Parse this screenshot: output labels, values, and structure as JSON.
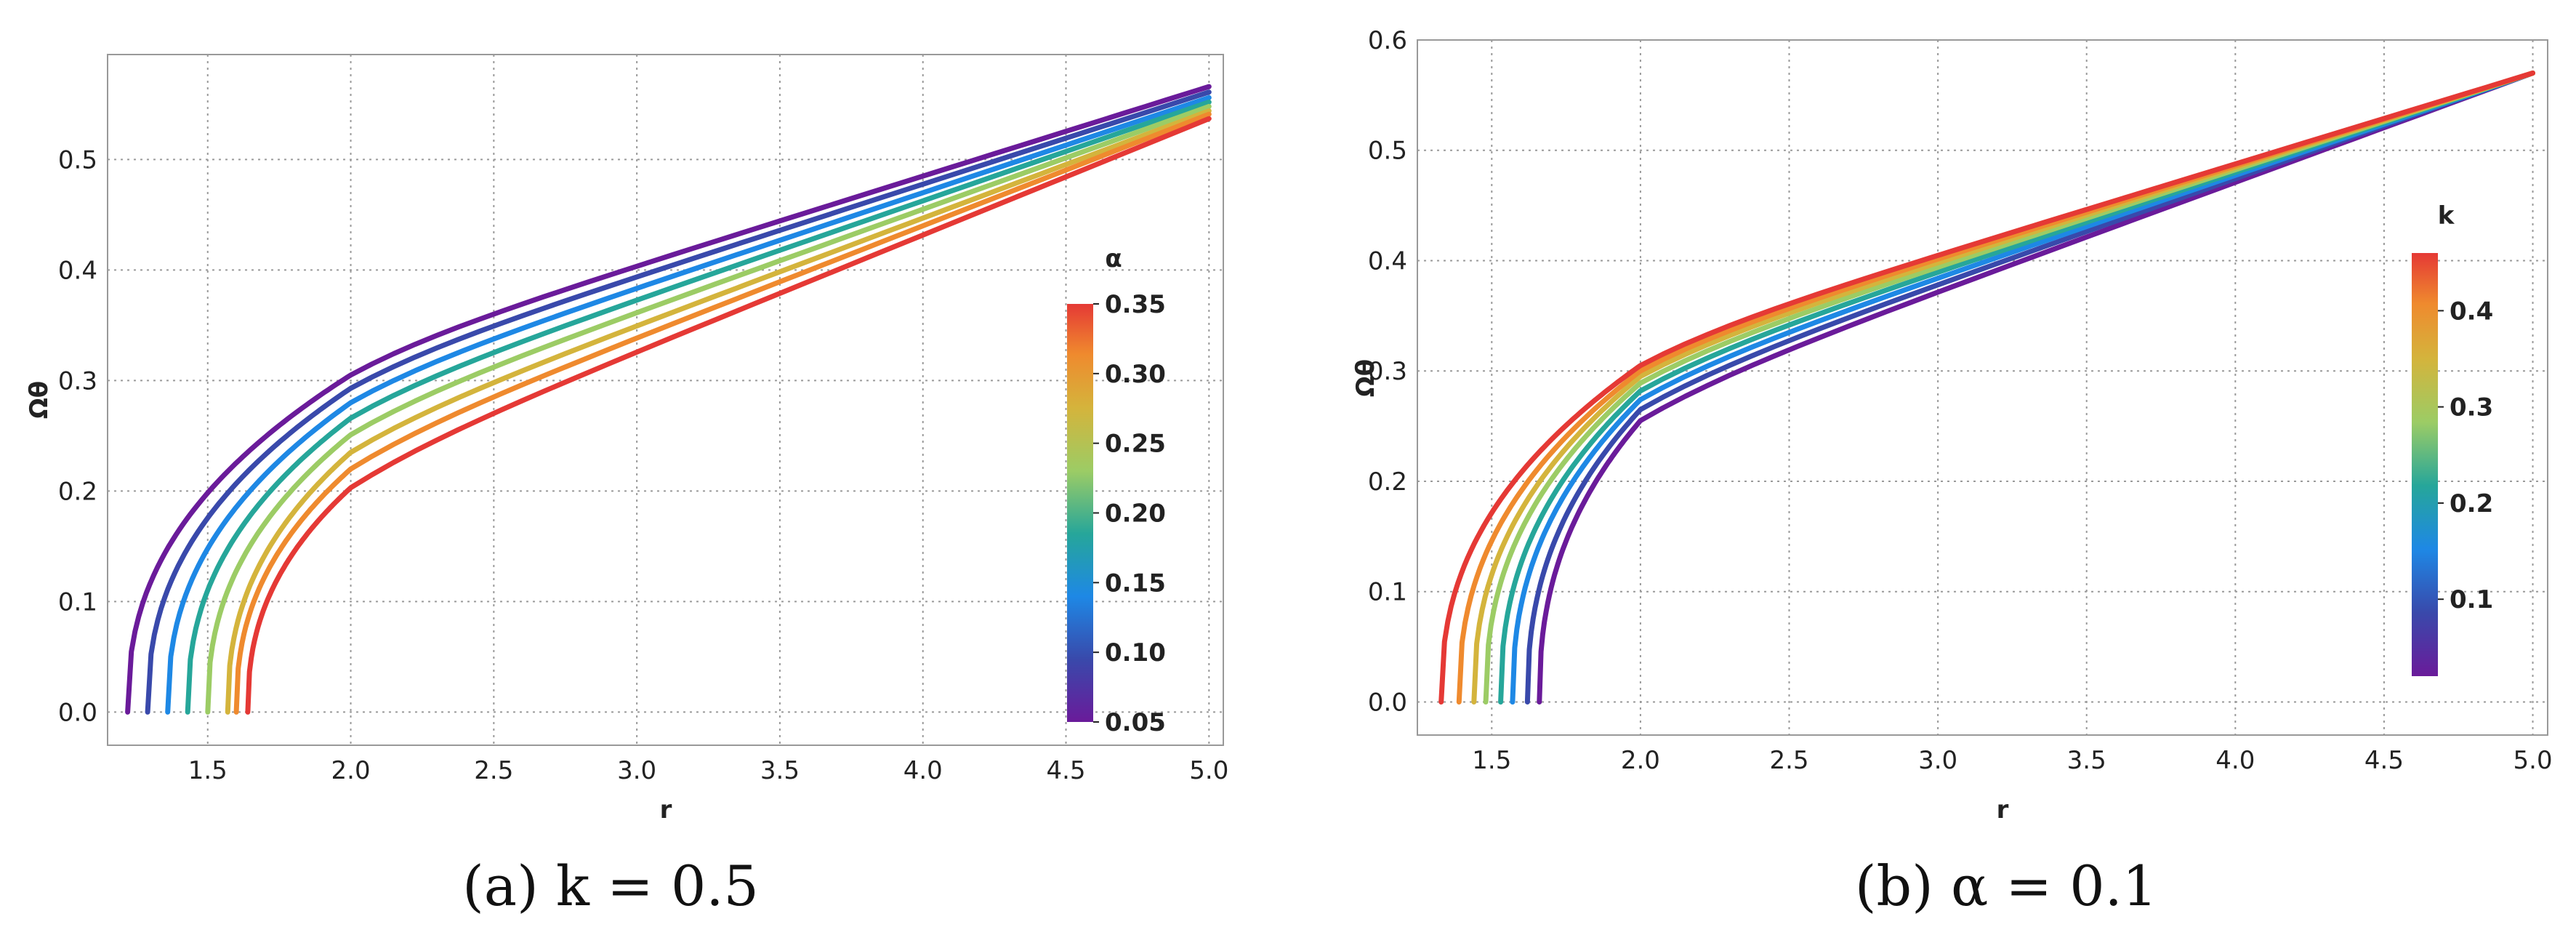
{
  "chart_data": [
    {
      "type": "line",
      "caption": "(a) k = 0.5",
      "xlabel": "r",
      "ylabel": "Ωθ",
      "xlim": [
        1.15,
        5.05
      ],
      "ylim": [
        -0.03,
        0.595
      ],
      "xticks": [
        1.5,
        2.0,
        2.5,
        3.0,
        3.5,
        4.0,
        4.5,
        5.0
      ],
      "yticks": [
        0.0,
        0.1,
        0.2,
        0.3,
        0.4,
        0.5
      ],
      "grid": true,
      "legend": {
        "type": "colorbar",
        "title": "α",
        "placement": "right",
        "range": [
          0.05,
          0.35
        ],
        "ticks": [
          0.05,
          0.1,
          0.15,
          0.2,
          0.25,
          0.3,
          0.35
        ]
      },
      "series": [
        {
          "param": 0.05,
          "color": "#6a1b9a",
          "r0": 1.22,
          "knee": {
            "r": 2.0,
            "y": 0.305
          },
          "end": {
            "r": 5.0,
            "y": 0.566
          }
        },
        {
          "param": 0.1,
          "color": "#3949ab",
          "r0": 1.29,
          "knee": {
            "r": 2.0,
            "y": 0.293
          },
          "end": {
            "r": 5.0,
            "y": 0.561
          }
        },
        {
          "param": 0.15,
          "color": "#1e88e5",
          "r0": 1.36,
          "knee": {
            "r": 2.0,
            "y": 0.28
          },
          "end": {
            "r": 5.0,
            "y": 0.556
          }
        },
        {
          "param": 0.2,
          "color": "#26a69a",
          "r0": 1.43,
          "knee": {
            "r": 2.0,
            "y": 0.266
          },
          "end": {
            "r": 5.0,
            "y": 0.552
          }
        },
        {
          "param": 0.25,
          "color": "#9ccc65",
          "r0": 1.5,
          "knee": {
            "r": 2.0,
            "y": 0.251
          },
          "end": {
            "r": 5.0,
            "y": 0.548
          }
        },
        {
          "param": 0.28,
          "color": "#d4b43c",
          "r0": 1.57,
          "knee": {
            "r": 2.0,
            "y": 0.235
          },
          "end": {
            "r": 5.0,
            "y": 0.544
          }
        },
        {
          "param": 0.31,
          "color": "#ef8a2e",
          "r0": 1.6,
          "knee": {
            "r": 2.0,
            "y": 0.22
          },
          "end": {
            "r": 5.0,
            "y": 0.541
          }
        },
        {
          "param": 0.35,
          "color": "#e53935",
          "r0": 1.64,
          "knee": {
            "r": 2.0,
            "y": 0.203
          },
          "end": {
            "r": 5.0,
            "y": 0.537
          }
        }
      ]
    },
    {
      "type": "line",
      "caption": "(b) α = 0.1",
      "xlabel": "r",
      "ylabel": "Ωθ",
      "xlim": [
        1.25,
        5.05
      ],
      "ylim": [
        -0.03,
        0.6
      ],
      "xticks": [
        1.5,
        2.0,
        2.5,
        3.0,
        3.5,
        4.0,
        4.5,
        5.0
      ],
      "yticks": [
        0.0,
        0.1,
        0.2,
        0.3,
        0.4,
        0.5,
        0.6
      ],
      "grid": true,
      "legend": {
        "type": "colorbar",
        "title": "k",
        "placement": "right",
        "range": [
          0.02,
          0.46
        ],
        "ticks": [
          0.1,
          0.2,
          0.3,
          0.4
        ]
      },
      "series": [
        {
          "param": 0.05,
          "color": "#6a1b9a",
          "r0": 1.66,
          "knee": {
            "r": 2.0,
            "y": 0.255
          },
          "end": {
            "r": 5.0,
            "y": 0.57
          }
        },
        {
          "param": 0.1,
          "color": "#3949ab",
          "r0": 1.62,
          "knee": {
            "r": 2.0,
            "y": 0.265
          },
          "end": {
            "r": 5.0,
            "y": 0.57
          }
        },
        {
          "param": 0.15,
          "color": "#1e88e5",
          "r0": 1.57,
          "knee": {
            "r": 2.0,
            "y": 0.274
          },
          "end": {
            "r": 5.0,
            "y": 0.57
          }
        },
        {
          "param": 0.2,
          "color": "#26a69a",
          "r0": 1.53,
          "knee": {
            "r": 2.0,
            "y": 0.282
          },
          "end": {
            "r": 5.0,
            "y": 0.57
          }
        },
        {
          "param": 0.25,
          "color": "#9ccc65",
          "r0": 1.48,
          "knee": {
            "r": 2.0,
            "y": 0.289
          },
          "end": {
            "r": 5.0,
            "y": 0.57
          }
        },
        {
          "param": 0.3,
          "color": "#d4b43c",
          "r0": 1.44,
          "knee": {
            "r": 2.0,
            "y": 0.295
          },
          "end": {
            "r": 5.0,
            "y": 0.57
          }
        },
        {
          "param": 0.35,
          "color": "#ef8a2e",
          "r0": 1.39,
          "knee": {
            "r": 2.0,
            "y": 0.3
          },
          "end": {
            "r": 5.0,
            "y": 0.57
          }
        },
        {
          "param": 0.45,
          "color": "#e53935",
          "r0": 1.33,
          "knee": {
            "r": 2.0,
            "y": 0.305
          },
          "end": {
            "r": 5.0,
            "y": 0.57
          }
        }
      ]
    }
  ]
}
